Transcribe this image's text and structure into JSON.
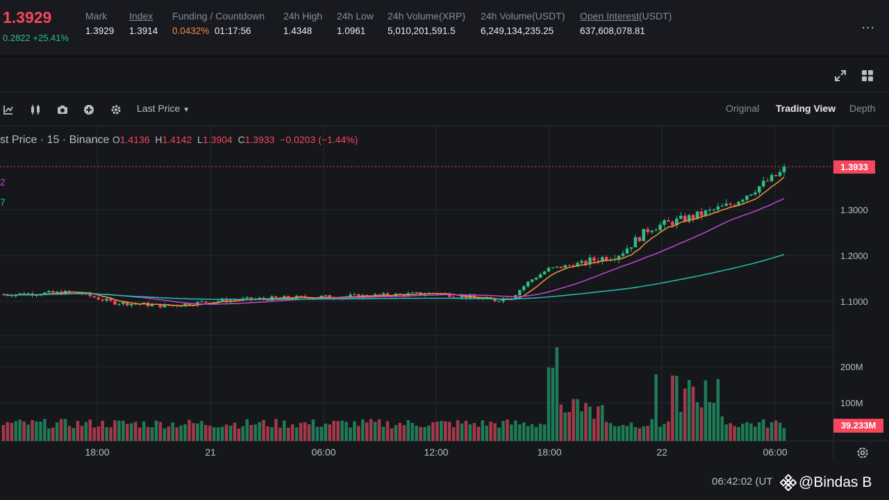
{
  "header": {
    "price": "1.3929",
    "change": "0.2822 +25.41%",
    "more_label": "...",
    "stats": [
      {
        "label": "Mark",
        "value": "1.3929"
      },
      {
        "label": "Index",
        "value": "1.3914"
      },
      {
        "label": "Funding / Countdown",
        "value_a": "0.0432%",
        "value_b": "01:17:56"
      },
      {
        "label": "24h High",
        "value": "1.4348"
      },
      {
        "label": "24h Low",
        "value": "1.0961"
      },
      {
        "label": "24h Volume(XRP)",
        "value": "5,010,201,591.5"
      },
      {
        "label": "24h Volume(USDT)",
        "value": "6,249,134,235.25"
      },
      {
        "label_a": "Open Interest",
        "label_b": "(USDT)",
        "value": "637,608,078.81"
      }
    ]
  },
  "toolbar": {
    "price_source": "Last Price",
    "tabs": [
      "Original",
      "Trading View",
      "Depth"
    ],
    "active_tab": "Trading View",
    "icons": [
      "indicator-icon",
      "candle-type-icon",
      "camera-icon",
      "add-icon",
      "gear-icon"
    ]
  },
  "legend": {
    "title": "st Price · 15 · Binance",
    "o_label": "O",
    "o": "1.4136",
    "h_label": "H",
    "h": "1.4142",
    "l_label": "L",
    "l": "1.3904",
    "c_label": "C",
    "c": "1.3933",
    "change": "−0.0203 (−1.44%)",
    "ma_a": "2",
    "ma_b": "7"
  },
  "chart_data": {
    "type": "candlestick",
    "price_axis": [
      "1.3000",
      "1.2000",
      "1.1000"
    ],
    "volume_axis": [
      "200M",
      "100M"
    ],
    "time_axis": [
      "18:00",
      "21",
      "06:00",
      "12:00",
      "18:00",
      "22",
      "06:00"
    ],
    "current_price": "1.3933",
    "current_volume": "39.233M",
    "colors": {
      "up": "#2ebd85",
      "down": "#f6465d",
      "ma_short": "#e0913b",
      "ma_mid": "#b845c9",
      "ma_long": "#2ab7a9"
    }
  },
  "footer": {
    "clock": "06:42:02 (UT",
    "watermark": "@Bindas B"
  }
}
